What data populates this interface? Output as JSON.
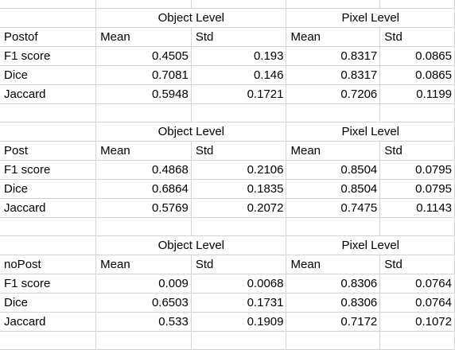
{
  "blocks": [
    {
      "group_headers": [
        "Object Level",
        "Pixel Level"
      ],
      "name": "Postof",
      "col_headers": [
        "Mean",
        "Std",
        "Mean",
        "Std"
      ],
      "rows": [
        {
          "label": "F1 score",
          "values": [
            "0.4505",
            "0.193",
            "0.8317",
            "0.0865"
          ]
        },
        {
          "label": "Dice",
          "values": [
            "0.7081",
            "0.146",
            "0.8317",
            "0.0865"
          ]
        },
        {
          "label": "Jaccard",
          "values": [
            "0.5948",
            "0.1721",
            "0.7206",
            "0.1199"
          ]
        }
      ]
    },
    {
      "group_headers": [
        "Object Level",
        "Pixel Level"
      ],
      "name": "Post",
      "col_headers": [
        "Mean",
        "Std",
        "Mean",
        "Std"
      ],
      "rows": [
        {
          "label": "F1 score",
          "values": [
            "0.4868",
            "0.2106",
            "0.8504",
            "0.0795"
          ]
        },
        {
          "label": "Dice",
          "values": [
            "0.6864",
            "0.1835",
            "0.8504",
            "0.0795"
          ]
        },
        {
          "label": "Jaccard",
          "values": [
            "0.5769",
            "0.2072",
            "0.7475",
            "0.1143"
          ]
        }
      ]
    },
    {
      "group_headers": [
        "Object Level",
        "Pixel Level"
      ],
      "name": "noPost",
      "col_headers": [
        "Mean",
        "Std",
        "Mean",
        "Std"
      ],
      "rows": [
        {
          "label": "F1 score",
          "values": [
            "0.009",
            "0.0068",
            "0.8306",
            "0.0764"
          ]
        },
        {
          "label": "Dice",
          "values": [
            "0.6503",
            "0.1731",
            "0.8306",
            "0.0764"
          ]
        },
        {
          "label": "Jaccard",
          "values": [
            "0.533",
            "0.1909",
            "0.7172",
            "0.1072"
          ]
        }
      ]
    }
  ]
}
